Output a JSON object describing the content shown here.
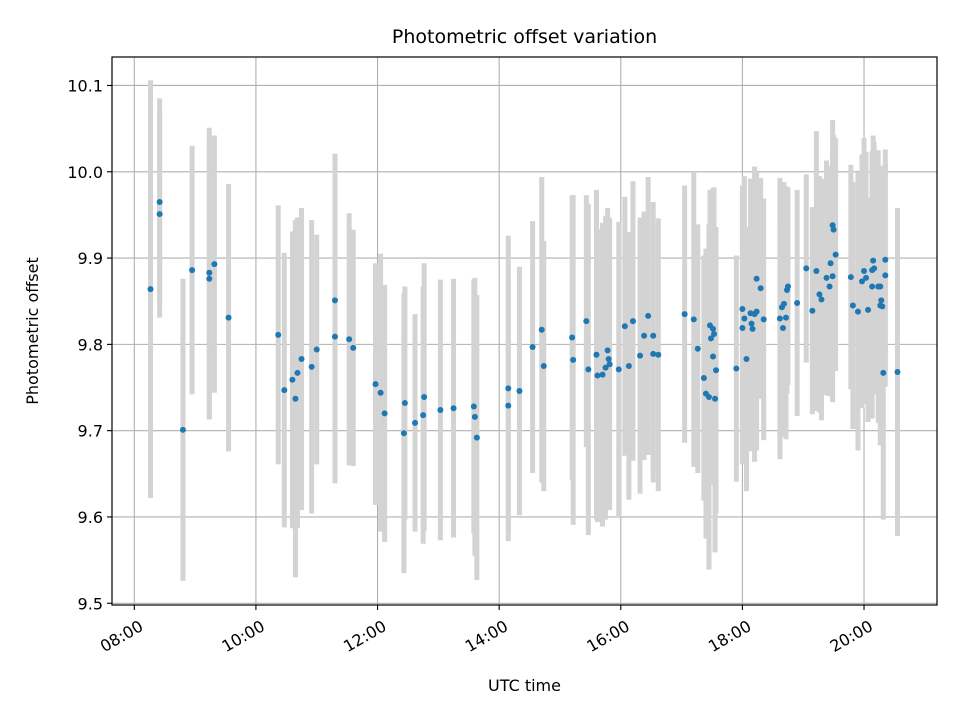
{
  "chart_data": {
    "type": "scatter",
    "title": "Photometric offset variation",
    "xlabel": "UTC time",
    "ylabel": "Photometric offset",
    "x_ticks": [
      "08:00",
      "10:00",
      "12:00",
      "14:00",
      "16:00",
      "18:00",
      "20:00"
    ],
    "y_ticks": [
      "9.5",
      "9.6",
      "9.7",
      "9.8",
      "9.9",
      "10.0",
      "10.1"
    ],
    "xlim": [
      "07:38",
      "21:12"
    ],
    "ylim": [
      9.498,
      10.133
    ],
    "grid": true,
    "colors": {
      "point": "#1f77b4",
      "errorbar": "#d3d3d3",
      "grid": "#b0b0b0"
    },
    "series": [
      {
        "x": [
          "08:16",
          "08:25",
          "08:25",
          "08:48",
          "08:57",
          "09:14",
          "09:14",
          "09:19",
          "09:33",
          "10:22",
          "10:28",
          "10:36",
          "10:39",
          "10:41",
          "10:45",
          "10:55",
          "11:00",
          "11:18",
          "11:18",
          "11:32",
          "11:36",
          "11:58",
          "12:03",
          "12:07",
          "12:26",
          "12:27",
          "12:37",
          "12:45",
          "12:46",
          "13:02",
          "13:15",
          "13:35",
          "13:36",
          "13:38",
          "14:09",
          "14:09",
          "14:20",
          "14:33",
          "14:42",
          "14:44",
          "15:12",
          "15:13",
          "15:26",
          "15:28",
          "15:36",
          "15:37",
          "15:42",
          "15:45",
          "15:47",
          "15:48",
          "15:49",
          "15:58",
          "16:04",
          "16:08",
          "16:12",
          "16:19",
          "16:23",
          "16:27",
          "16:32",
          "16:32",
          "16:37",
          "17:03",
          "17:12",
          "17:16",
          "17:22",
          "17:24",
          "17:27",
          "17:28",
          "17:29",
          "17:31",
          "17:31",
          "17:32",
          "17:33",
          "17:34",
          "17:54",
          "18:00",
          "18:00",
          "18:02",
          "18:04",
          "18:08",
          "18:09",
          "18:10",
          "18:12",
          "18:14",
          "18:14",
          "18:18",
          "18:21",
          "18:37",
          "18:39",
          "18:40",
          "18:41",
          "18:43",
          "18:44",
          "18:45",
          "18:54",
          "19:03",
          "19:09",
          "19:13",
          "19:16",
          "19:18",
          "19:23",
          "19:26",
          "19:27",
          "19:29",
          "19:29",
          "19:30",
          "19:32",
          "19:47",
          "19:49",
          "19:54",
          "19:58",
          "20:00",
          "20:02",
          "20:04",
          "20:08",
          "20:08",
          "20:09",
          "20:10",
          "20:14",
          "20:16",
          "20:16",
          "20:17",
          "20:18",
          "20:19",
          "20:21",
          "20:21",
          "20:33"
        ],
        "y": [
          9.864,
          9.965,
          9.951,
          9.701,
          9.886,
          9.876,
          9.883,
          9.893,
          9.831,
          9.811,
          9.747,
          9.759,
          9.737,
          9.767,
          9.783,
          9.774,
          9.794,
          9.851,
          9.809,
          9.806,
          9.796,
          9.754,
          9.744,
          9.72,
          9.697,
          9.732,
          9.709,
          9.718,
          9.739,
          9.724,
          9.726,
          9.728,
          9.716,
          9.692,
          9.749,
          9.729,
          9.746,
          9.797,
          9.817,
          9.775,
          9.808,
          9.782,
          9.827,
          9.771,
          9.788,
          9.764,
          9.765,
          9.773,
          9.793,
          9.783,
          9.777,
          9.771,
          9.821,
          9.775,
          9.827,
          9.787,
          9.81,
          9.833,
          9.81,
          9.789,
          9.788,
          9.835,
          9.829,
          9.795,
          9.761,
          9.743,
          9.739,
          9.822,
          9.807,
          9.818,
          9.786,
          9.812,
          9.737,
          9.77,
          9.772,
          9.819,
          9.841,
          9.83,
          9.783,
          9.836,
          9.824,
          9.818,
          9.835,
          9.838,
          9.876,
          9.865,
          9.829,
          9.83,
          9.843,
          9.819,
          9.847,
          9.831,
          9.863,
          9.867,
          9.848,
          9.888,
          9.839,
          9.885,
          9.858,
          9.852,
          9.877,
          9.867,
          9.894,
          9.938,
          9.879,
          9.933,
          9.904,
          9.878,
          9.845,
          9.838,
          9.873,
          9.885,
          9.877,
          9.84,
          9.867,
          9.886,
          9.897,
          9.888,
          9.867,
          9.845,
          9.867,
          9.851,
          9.844,
          9.767,
          9.88,
          9.898,
          9.768
        ],
        "yerr": [
          0.242,
          0.12,
          0.12,
          0.175,
          0.144,
          0.163,
          0.168,
          0.149,
          0.155,
          0.15,
          0.159,
          0.172,
          0.207,
          0.18,
          0.175,
          0.17,
          0.133,
          0.17,
          0.17,
          0.146,
          0.137,
          0.14,
          0.161,
          0.149,
          0.162,
          0.135,
          0.126,
          0.149,
          0.155,
          0.151,
          0.15,
          0.147,
          0.161,
          0.165,
          0.177,
          0.147,
          0.144,
          0.146,
          0.177,
          0.145,
          0.165,
          0.191,
          0.146,
          0.192,
          0.191,
          0.17,
          0.176,
          0.176,
          0.165,
          0.164,
          0.169,
          0.171,
          0.15,
          0.155,
          0.162,
          0.16,
          0.144,
          0.161,
          0.155,
          0.149,
          0.158,
          0.149,
          0.171,
          0.144,
          0.142,
          0.168,
          0.2,
          0.157,
          0.156,
          0.163,
          0.149,
          0.17,
          0.178,
          0.166,
          0.131,
          0.158,
          0.143,
          0.165,
          0.153,
          0.156,
          0.148,
          0.134,
          0.171,
          0.161,
          0.113,
          0.128,
          0.14,
          0.163,
          0.131,
          0.126,
          0.141,
          0.141,
          0.12,
          0.114,
          0.131,
          0.109,
          0.12,
          0.162,
          0.137,
          0.14,
          0.136,
          0.127,
          0.113,
          0.122,
          0.146,
          0.11,
          0.135,
          0.13,
          0.143,
          0.161,
          0.147,
          0.154,
          0.146,
          0.13,
          0.153,
          0.138,
          0.145,
          0.146,
          0.158,
          0.162,
          0.132,
          0.143,
          0.145,
          0.17,
          0.129,
          0.128,
          0.19
        ]
      }
    ]
  }
}
